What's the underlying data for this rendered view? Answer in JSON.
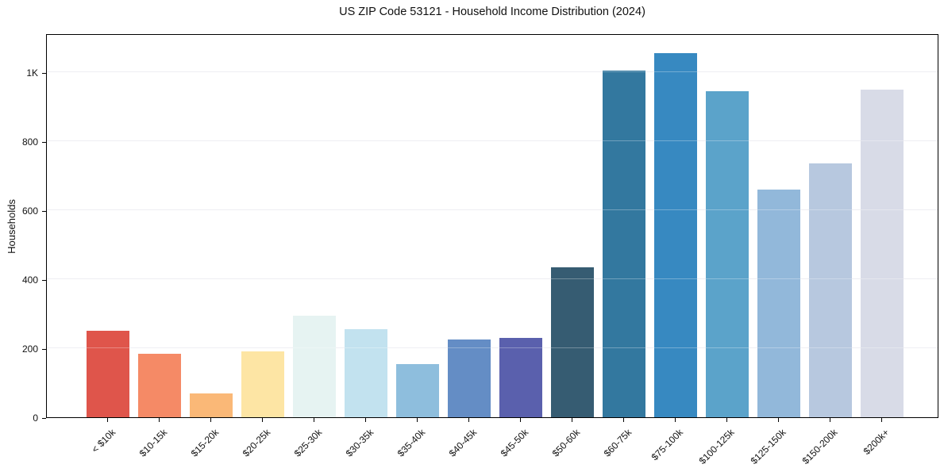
{
  "chart": {
    "title": "US ZIP Code 53121 - Household Income Distribution (2024)",
    "ylabel": "Households"
  },
  "chart_data": {
    "type": "bar",
    "title": "US ZIP Code 53121 - Household Income Distribution (2024)",
    "xlabel": "",
    "ylabel": "Households",
    "categories": [
      "< $10k",
      "$10-15k",
      "$15-20k",
      "$20-25k",
      "$25-30k",
      "$30-35k",
      "$35-40k",
      "$40-45k",
      "$45-50k",
      "$50-60k",
      "$60-75k",
      "$75-100k",
      "$100-125k",
      "$125-150k",
      "$150-200k",
      "$200k+"
    ],
    "values": [
      250,
      185,
      70,
      190,
      295,
      255,
      155,
      225,
      230,
      435,
      1005,
      1055,
      945,
      660,
      735,
      950
    ],
    "bar_colors": [
      "#df554b",
      "#f58a66",
      "#fab877",
      "#fde5a4",
      "#e6f3f2",
      "#c2e2ef",
      "#8ebedd",
      "#648dc5",
      "#5a60ad",
      "#365c72",
      "#33789f",
      "#3789c1",
      "#5ba3ca",
      "#92b8da",
      "#b7c8df",
      "#d8dbe7"
    ],
    "ylim": [
      0,
      1113
    ],
    "yticks": [
      {
        "value": 0,
        "label": "0"
      },
      {
        "value": 200,
        "label": "200"
      },
      {
        "value": 400,
        "label": "400"
      },
      {
        "value": 600,
        "label": "600"
      },
      {
        "value": 800,
        "label": "800"
      },
      {
        "value": 1000,
        "label": "1K"
      }
    ],
    "grid": "horizontal",
    "legend": "none",
    "grid_color": "#e7e7ee",
    "spine_color": "#000000",
    "background": "#ffffff"
  }
}
